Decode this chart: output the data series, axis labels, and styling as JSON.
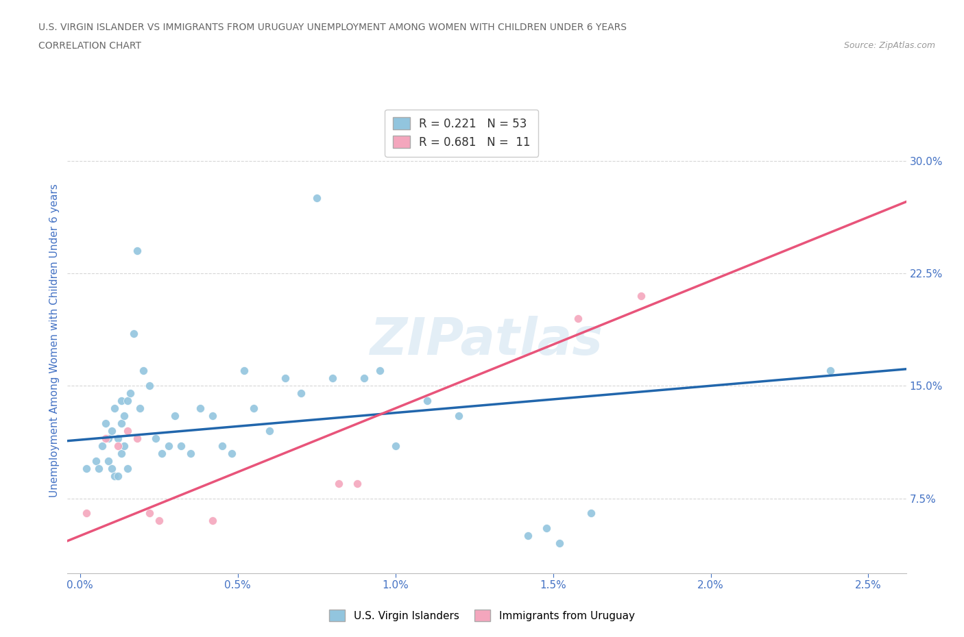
{
  "title_line1": "U.S. VIRGIN ISLANDER VS IMMIGRANTS FROM URUGUAY UNEMPLOYMENT AMONG WOMEN WITH CHILDREN UNDER 6 YEARS",
  "title_line2": "CORRELATION CHART",
  "source_text": "Source: ZipAtlas.com",
  "ylabel": "Unemployment Among Women with Children Under 6 years",
  "x_tick_labels": [
    "0.0%",
    "0.5%",
    "1.0%",
    "1.5%",
    "2.0%",
    "2.5%"
  ],
  "x_tick_vals": [
    0.0,
    0.5,
    1.0,
    1.5,
    2.0,
    2.5
  ],
  "y_tick_labels": [
    "7.5%",
    "15.0%",
    "22.5%",
    "30.0%"
  ],
  "y_tick_vals": [
    7.5,
    15.0,
    22.5,
    30.0
  ],
  "blue_color": "#92c5de",
  "pink_color": "#f4a6bd",
  "blue_line_color": "#2166ac",
  "pink_line_color": "#e8547a",
  "legend_label1": "U.S. Virgin Islanders",
  "legend_label2": "Immigrants from Uruguay",
  "watermark": "ZIPatlas",
  "blue_scatter_x": [
    0.02,
    0.05,
    0.06,
    0.07,
    0.08,
    0.09,
    0.09,
    0.1,
    0.1,
    0.11,
    0.11,
    0.12,
    0.12,
    0.13,
    0.13,
    0.13,
    0.14,
    0.14,
    0.15,
    0.15,
    0.16,
    0.17,
    0.18,
    0.19,
    0.2,
    0.22,
    0.24,
    0.26,
    0.28,
    0.3,
    0.32,
    0.35,
    0.38,
    0.42,
    0.45,
    0.48,
    0.52,
    0.55,
    0.6,
    0.65,
    0.7,
    0.75,
    0.8,
    0.9,
    0.95,
    1.0,
    1.1,
    1.2,
    1.42,
    1.48,
    1.52,
    1.62,
    2.38
  ],
  "blue_scatter_y": [
    9.5,
    10.0,
    9.5,
    11.0,
    12.5,
    11.5,
    10.0,
    12.0,
    9.5,
    9.0,
    13.5,
    9.0,
    11.5,
    12.5,
    14.0,
    10.5,
    11.0,
    13.0,
    9.5,
    14.0,
    14.5,
    18.5,
    24.0,
    13.5,
    16.0,
    15.0,
    11.5,
    10.5,
    11.0,
    13.0,
    11.0,
    10.5,
    13.5,
    13.0,
    11.0,
    10.5,
    16.0,
    13.5,
    12.0,
    15.5,
    14.5,
    27.5,
    15.5,
    15.5,
    16.0,
    11.0,
    14.0,
    13.0,
    5.0,
    5.5,
    4.5,
    6.5,
    16.0
  ],
  "pink_scatter_x": [
    0.02,
    0.08,
    0.12,
    0.15,
    0.18,
    0.22,
    0.25,
    0.42,
    0.82,
    0.88,
    1.58,
    1.78
  ],
  "pink_scatter_y": [
    6.5,
    11.5,
    11.0,
    12.0,
    11.5,
    6.5,
    6.0,
    6.0,
    8.5,
    8.5,
    19.5,
    21.0
  ],
  "blue_slope": 1.8,
  "blue_intercept": 11.4,
  "pink_slope": 8.5,
  "pink_intercept": 5.0,
  "xlim": [
    -0.04,
    2.62
  ],
  "ylim": [
    2.5,
    33.5
  ],
  "background_color": "#ffffff",
  "grid_color": "#cccccc",
  "title_color": "#666666",
  "axis_label_color": "#4472c4",
  "tick_color": "#4472c4",
  "marker_size": 75
}
